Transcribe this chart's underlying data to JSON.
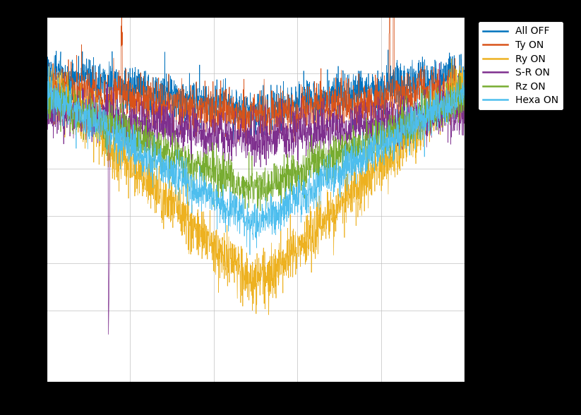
{
  "legend_labels": [
    "All OFF",
    "Ty ON",
    "Ry ON",
    "S-R ON",
    "Rz ON",
    "Hexa ON"
  ],
  "colors": [
    "#0072BD",
    "#D95319",
    "#EDB120",
    "#7E2F8E",
    "#77AC30",
    "#4DBEEE"
  ],
  "linewidth": 0.5,
  "figsize": [
    8.23,
    5.88
  ],
  "dpi": 100,
  "background_color": "#000000",
  "axes_background": "#FFFFFF",
  "grid_color": "#C0C0C0",
  "xlim": [
    0,
    1
  ],
  "ylim": [
    -6.5,
    1.2
  ]
}
